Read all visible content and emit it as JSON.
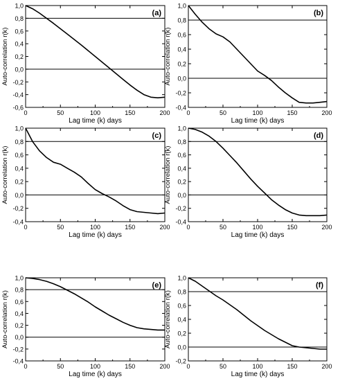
{
  "chart_data": [
    {
      "type": "line",
      "panel_label": "(a)",
      "xlabel": "Lag time (k) days",
      "ylabel": "Auto-correlation r(k)",
      "xlim": [
        0,
        200
      ],
      "ylim": [
        -0.6,
        1.0
      ],
      "xticks": [
        "0",
        "50",
        "100",
        "150",
        "200"
      ],
      "yticks": [
        "1,0",
        "0,8",
        "0,6",
        "0,4",
        "0,2",
        "0,0",
        "-0,2",
        "-0,4",
        "-0,6"
      ],
      "hlines": [
        0.8,
        0.0
      ],
      "grid": false,
      "x": [
        0,
        10,
        20,
        40,
        60,
        80,
        100,
        120,
        140,
        150,
        160,
        170,
        180,
        190,
        200
      ],
      "y": [
        1.0,
        0.95,
        0.88,
        0.72,
        0.55,
        0.38,
        0.2,
        0.02,
        -0.16,
        -0.25,
        -0.33,
        -0.4,
        -0.44,
        -0.45,
        -0.44
      ]
    },
    {
      "type": "line",
      "panel_label": "(b)",
      "xlabel": "Lag time (k) days",
      "ylabel": "Auto-correlation r(k)",
      "xlim": [
        0,
        200
      ],
      "ylim": [
        -0.4,
        1.0
      ],
      "xticks": [
        "0",
        "50",
        "100",
        "150",
        "200"
      ],
      "yticks": [
        "1,0",
        "0,8",
        "0,6",
        "0,4",
        "0,2",
        "0,0",
        "-0,2",
        "-0,4"
      ],
      "hlines": [
        0.8,
        0.0
      ],
      "grid": false,
      "x": [
        0,
        10,
        20,
        30,
        40,
        50,
        60,
        70,
        80,
        90,
        100,
        110,
        120,
        130,
        140,
        150,
        160,
        170,
        180,
        190,
        200
      ],
      "y": [
        1.0,
        0.88,
        0.77,
        0.68,
        0.61,
        0.57,
        0.5,
        0.4,
        0.3,
        0.2,
        0.1,
        0.04,
        -0.03,
        -0.12,
        -0.2,
        -0.27,
        -0.33,
        -0.34,
        -0.34,
        -0.33,
        -0.32
      ]
    },
    {
      "type": "line",
      "panel_label": "(c)",
      "xlabel": "Lag time (k) days",
      "ylabel": "Auto-correlation r(k)",
      "xlim": [
        0,
        200
      ],
      "ylim": [
        -0.4,
        1.0
      ],
      "xticks": [
        "0",
        "50",
        "100",
        "150",
        "200"
      ],
      "yticks": [
        "1,0",
        "0,8",
        "0,6",
        "0,4",
        "0,2",
        "0,0",
        "-0,2",
        "-0,4"
      ],
      "hlines": [
        0.8,
        0.0
      ],
      "grid": false,
      "x": [
        0,
        10,
        20,
        30,
        40,
        50,
        60,
        70,
        80,
        90,
        100,
        110,
        120,
        130,
        140,
        150,
        160,
        170,
        180,
        190,
        200
      ],
      "y": [
        1.0,
        0.8,
        0.66,
        0.56,
        0.49,
        0.46,
        0.4,
        0.34,
        0.27,
        0.17,
        0.08,
        0.02,
        -0.03,
        -0.09,
        -0.16,
        -0.22,
        -0.25,
        -0.26,
        -0.27,
        -0.28,
        -0.27
      ]
    },
    {
      "type": "line",
      "panel_label": "(d)",
      "xlabel": "Lag time (k) days",
      "ylabel": "Auto-correlation r(k)",
      "xlim": [
        0,
        200
      ],
      "ylim": [
        -0.4,
        1.0
      ],
      "xticks": [
        "0",
        "50",
        "100",
        "150",
        "200"
      ],
      "yticks": [
        "1,0",
        "0,8",
        "0,6",
        "0,4",
        "0,2",
        "0,0",
        "-0,2",
        "-0,4"
      ],
      "hlines": [
        0.8,
        0.0
      ],
      "grid": false,
      "x": [
        0,
        10,
        20,
        30,
        40,
        50,
        60,
        70,
        80,
        90,
        100,
        110,
        120,
        130,
        140,
        150,
        160,
        170,
        180,
        190,
        200
      ],
      "y": [
        1.0,
        0.98,
        0.94,
        0.88,
        0.8,
        0.7,
        0.59,
        0.48,
        0.36,
        0.24,
        0.13,
        0.03,
        -0.07,
        -0.15,
        -0.22,
        -0.27,
        -0.3,
        -0.31,
        -0.31,
        -0.31,
        -0.3
      ]
    },
    {
      "type": "line",
      "panel_label": "(e)",
      "xlabel": "Lag time (k) days",
      "ylabel": "Auto-correlation r(k)",
      "xlim": [
        0,
        200
      ],
      "ylim": [
        -0.4,
        1.0
      ],
      "xticks": [
        "0",
        "50",
        "100",
        "150",
        "200"
      ],
      "yticks": [
        "1,0",
        "0,8",
        "0,6",
        "0,4",
        "0,2",
        "0,0",
        "-0,2",
        "-0,4"
      ],
      "hlines": [
        0.8,
        0.0
      ],
      "grid": false,
      "x": [
        0,
        10,
        20,
        30,
        40,
        50,
        60,
        70,
        80,
        90,
        100,
        110,
        120,
        130,
        140,
        150,
        160,
        170,
        180,
        190,
        200
      ],
      "y": [
        1.0,
        0.99,
        0.97,
        0.94,
        0.9,
        0.85,
        0.79,
        0.73,
        0.66,
        0.59,
        0.51,
        0.44,
        0.37,
        0.31,
        0.25,
        0.2,
        0.16,
        0.14,
        0.13,
        0.12,
        0.12
      ]
    },
    {
      "type": "line",
      "panel_label": "(f)",
      "xlabel": "Lag time (k) days",
      "ylabel": "Auto-correlation r(k)",
      "xlim": [
        0,
        200
      ],
      "ylim": [
        -0.2,
        1.0
      ],
      "xticks": [
        "0",
        "50",
        "100",
        "150",
        "200"
      ],
      "yticks": [
        "1,0",
        "0,8",
        "0,6",
        "0,4",
        "0,2",
        "0,0",
        "-0,2"
      ],
      "hlines": [
        0.8,
        0.0
      ],
      "grid": false,
      "x": [
        0,
        10,
        20,
        30,
        40,
        50,
        60,
        70,
        80,
        90,
        100,
        110,
        120,
        130,
        140,
        150,
        160,
        170,
        180,
        190,
        200
      ],
      "y": [
        1.0,
        0.95,
        0.88,
        0.81,
        0.74,
        0.68,
        0.61,
        0.54,
        0.46,
        0.38,
        0.31,
        0.24,
        0.18,
        0.12,
        0.07,
        0.02,
        0.0,
        -0.01,
        -0.02,
        -0.03,
        -0.03
      ]
    }
  ]
}
